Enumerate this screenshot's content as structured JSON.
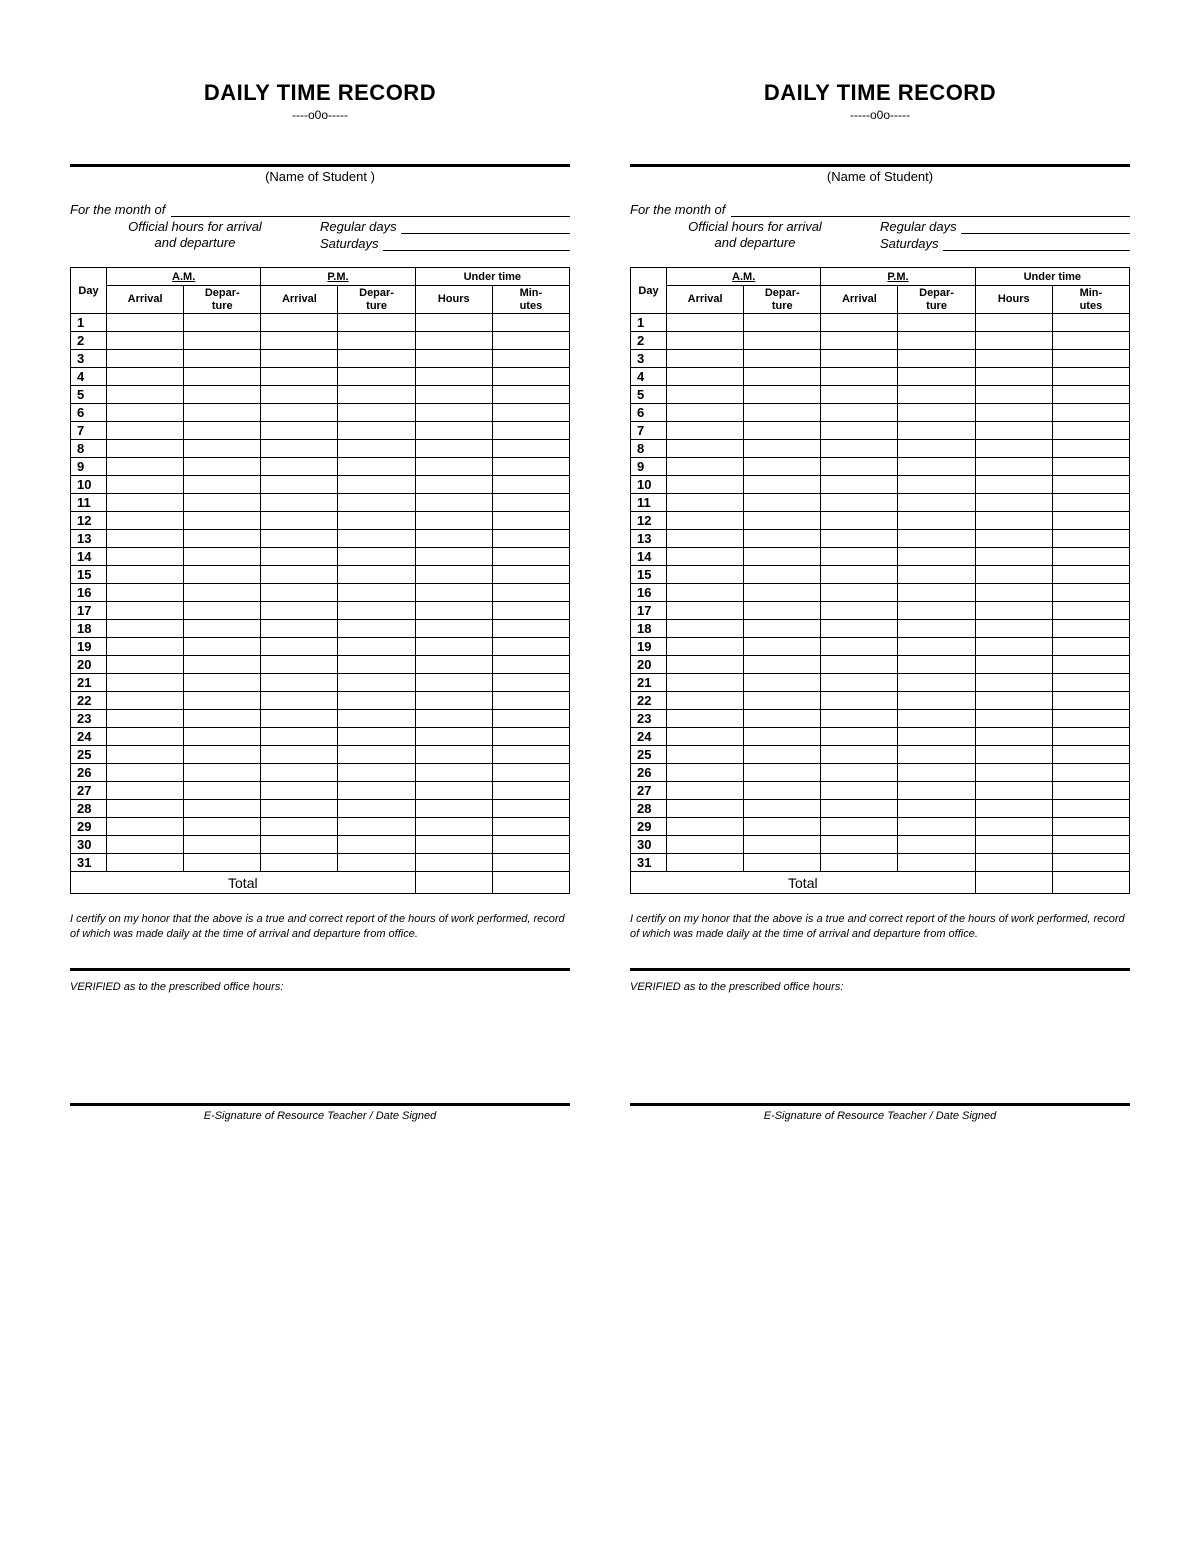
{
  "title": "DAILY TIME RECORD",
  "subtitle_left": "----o0o-----",
  "subtitle_right": "-----o0o-----",
  "name_label_left": "(Name of Student )",
  "name_label_right": "(Name of Student)",
  "month_label": "For the month of",
  "official_label_1": "Official hours for arrival",
  "official_label_2": "and departure",
  "regular_days_label": "Regular days",
  "saturdays_label": "Saturdays",
  "headers": {
    "day": "Day",
    "am": "A.M.",
    "pm": "P.M.",
    "undertime": "Under time",
    "arrival": "Arrival",
    "departure_1": "Depar-",
    "departure_2": "ture",
    "hours": "Hours",
    "minutes_1": "Min-",
    "minutes_2": "utes"
  },
  "days": [
    "1",
    "2",
    "3",
    "4",
    "5",
    "6",
    "7",
    "8",
    "9",
    "10",
    "11",
    "12",
    "13",
    "14",
    "15",
    "16",
    "17",
    "18",
    "19",
    "20",
    "21",
    "22",
    "23",
    "24",
    "25",
    "26",
    "27",
    "28",
    "29",
    "30",
    "31"
  ],
  "total_label": "Total",
  "certification": "I certify on my honor that the above is a true and correct report of the hours of work performed, record of which was made daily at the time of arrival and departure from office.",
  "verified": "VERIFIED as to the prescribed office hours:",
  "signature_label": "E-Signature of Resource Teacher / Date Signed"
}
